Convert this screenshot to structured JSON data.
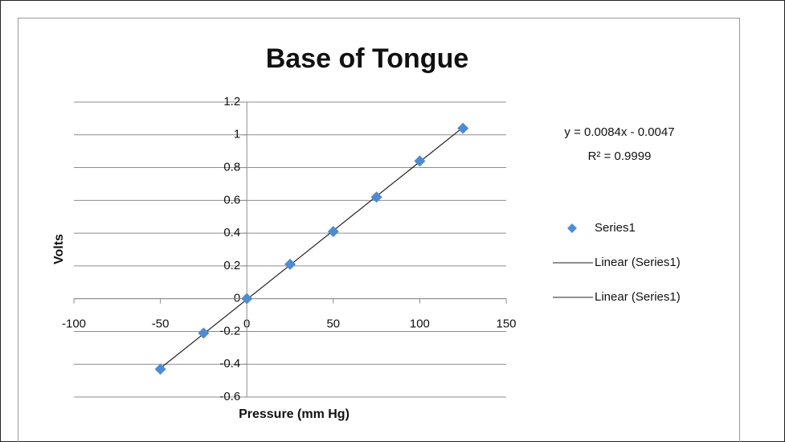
{
  "chart_data": {
    "type": "scatter",
    "title": "Base of Tongue",
    "x_label": "Pressure (mm Hg)",
    "y_label": "Volts",
    "series": [
      {
        "name": "Series1",
        "color": "#4f8bd0",
        "x": [
          -50,
          -25,
          0,
          25,
          50,
          75,
          100,
          125
        ],
        "values": [
          -0.43,
          -0.21,
          0,
          0.21,
          0.41,
          0.62,
          0.84,
          1.04
        ]
      }
    ],
    "trendlines": [
      {
        "name": "Linear (Series1)",
        "color": "#222222",
        "equation": "y = 0.0084x - 0.0047",
        "r_squared": "R² = 0.9999",
        "slope": 0.0084,
        "intercept": -0.0047
      },
      {
        "name": "Linear (Series1)",
        "color": "#222222"
      }
    ],
    "xlim": [
      -100,
      150
    ],
    "xticks": [
      -100,
      -50,
      0,
      50,
      100,
      150
    ],
    "ylim": [
      -0.6,
      1.2
    ],
    "yticks": [
      -0.6,
      -0.4,
      -0.2,
      0,
      0.2,
      0.4,
      0.6,
      0.8,
      1,
      1.2
    ],
    "grid": true
  }
}
